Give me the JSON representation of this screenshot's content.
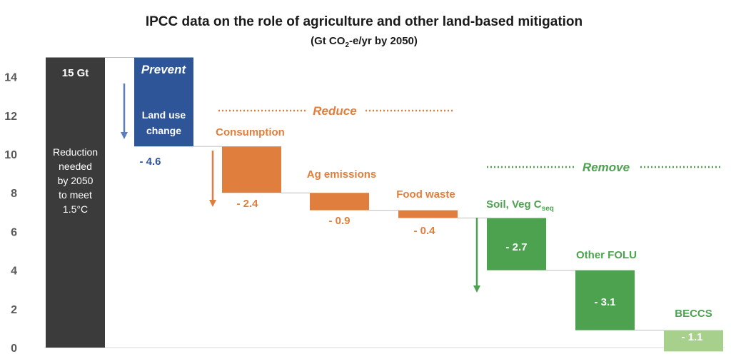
{
  "chart_data": {
    "type": "bar",
    "subtype": "waterfall",
    "title": "IPCC data on the role of agriculture and other land-based mitigation",
    "subtitle_prefix": "(Gt CO",
    "subtitle_sub": "2",
    "subtitle_suffix": "-e/yr by 2050)",
    "ylim": [
      0,
      15
    ],
    "yticks": [
      0,
      2,
      4,
      6,
      8,
      10,
      12,
      14
    ],
    "grid": false,
    "total": {
      "label": "15 Gt",
      "value": 15,
      "note_lines": [
        "Reduction",
        "needed",
        "by 2050",
        "to meet",
        "1.5°C"
      ],
      "color": "#3b3b3b"
    },
    "steps": [
      {
        "name": "Land use change",
        "name_lines": [
          "Land use",
          "change"
        ],
        "value": -4.6,
        "value_label": "- 4.6",
        "color": "#2e5597"
      },
      {
        "name": "Consumption",
        "value": -2.4,
        "value_label": "- 2.4",
        "color": "#e07f3d"
      },
      {
        "name": "Ag emissions",
        "value": -0.9,
        "value_label": "- 0.9",
        "color": "#e07f3d"
      },
      {
        "name": "Food waste",
        "value": -0.4,
        "value_label": "- 0.4",
        "color": "#e07f3d"
      },
      {
        "name": "Soil, Veg C",
        "name_sub": "seq",
        "value": -2.7,
        "value_label": "- 2.7",
        "color": "#4ca24f"
      },
      {
        "name": "Other FOLU",
        "value": -3.1,
        "value_label": "- 3.1",
        "color": "#4ca24f"
      },
      {
        "name": "BECCS",
        "value": -1.1,
        "value_label": "- 1.1",
        "color": "#a8d08d"
      }
    ],
    "groups": [
      {
        "label": "Prevent",
        "color": "#2e5597"
      },
      {
        "label": "Reduce",
        "color": "#e07f3d"
      },
      {
        "label": "Remove",
        "color": "#4ca24f"
      }
    ]
  }
}
